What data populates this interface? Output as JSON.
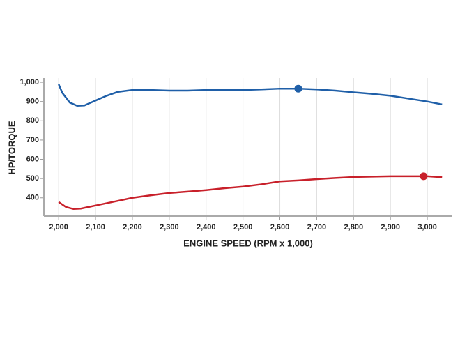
{
  "chart_data": {
    "type": "line",
    "x_label": "ENGINE SPEED (RPM x 1,000)",
    "y_label": "HP/TORQUE",
    "xlim": [
      1960,
      3066
    ],
    "ylim": [
      305,
      1022
    ],
    "xticks": [
      {
        "value": 2000,
        "label": "2,000"
      },
      {
        "value": 2100,
        "label": "2,100"
      },
      {
        "value": 2200,
        "label": "2,200"
      },
      {
        "value": 2300,
        "label": "2,300"
      },
      {
        "value": 2400,
        "label": "2,400"
      },
      {
        "value": 2500,
        "label": "2,500"
      },
      {
        "value": 2600,
        "label": "2,600"
      },
      {
        "value": 2700,
        "label": "2,700"
      },
      {
        "value": 2800,
        "label": "2,800"
      },
      {
        "value": 2900,
        "label": "2,900"
      },
      {
        "value": 3000,
        "label": "3,000"
      }
    ],
    "yticks": [
      400,
      500,
      600,
      700,
      800,
      900,
      {
        "value": 1000,
        "label": "1,000"
      }
    ],
    "grid": true,
    "series": [
      {
        "color": "#1f5fa8",
        "x": [
          2000,
          2010,
          2030,
          2050,
          2070,
          2100,
          2130,
          2160,
          2200,
          2250,
          2300,
          2350,
          2400,
          2450,
          2500,
          2550,
          2600,
          2650,
          2700,
          2750,
          2800,
          2850,
          2900,
          2950,
          3000,
          3040
        ],
        "values": [
          990,
          945,
          895,
          878,
          880,
          905,
          930,
          950,
          960,
          960,
          957,
          957,
          960,
          962,
          960,
          963,
          967,
          967,
          963,
          957,
          948,
          940,
          930,
          915,
          900,
          885
        ],
        "peak": {
          "x": 2650,
          "y": 967
        }
      },
      {
        "color": "#c8202a",
        "x": [
          2000,
          2020,
          2040,
          2060,
          2080,
          2100,
          2150,
          2200,
          2250,
          2300,
          2350,
          2400,
          2450,
          2500,
          2550,
          2600,
          2650,
          2700,
          2750,
          2800,
          2850,
          2900,
          2950,
          3000,
          3040
        ],
        "values": [
          378,
          352,
          342,
          344,
          352,
          360,
          380,
          400,
          413,
          425,
          432,
          440,
          450,
          458,
          470,
          485,
          490,
          497,
          503,
          508,
          510,
          512,
          512,
          512,
          507
        ],
        "peak": {
          "x": 2990,
          "y": 512
        }
      }
    ]
  }
}
